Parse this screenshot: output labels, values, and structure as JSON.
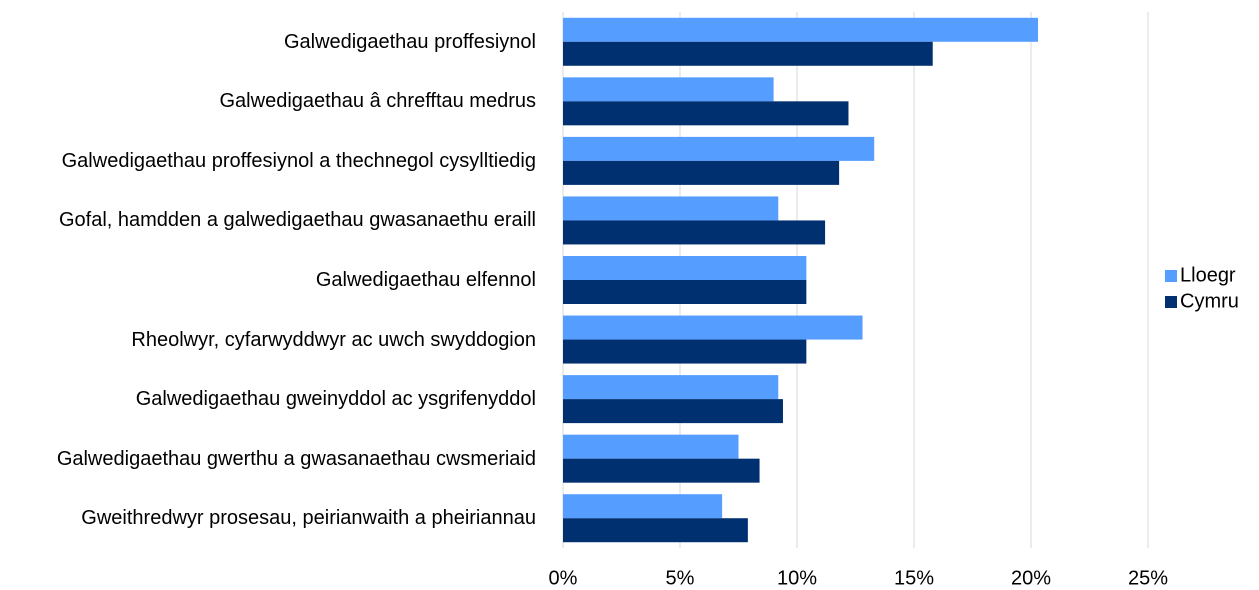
{
  "chart_data": {
    "type": "bar",
    "orientation": "horizontal",
    "categories": [
      "Galwedigaethau proffesiynol",
      "Galwedigaethau â chrefftau medrus",
      "Galwedigaethau proffesiynol a thechnegol cysylltiedig",
      "Gofal, hamdden a galwedigaethau gwasanaethu eraill",
      "Galwedigaethau elfennol",
      "Rheolwyr, cyfarwyddwyr ac uwch swyddogion",
      "Galwedigaethau gweinyddol ac ysgrifenyddol",
      "Galwedigaethau gwerthu a gwasanaethau cwsmeriaid",
      "Gweithredwyr prosesau, peirianwaith a pheiriannau"
    ],
    "series": [
      {
        "name": "Lloegr",
        "color": "#559dff",
        "values": [
          20.3,
          9.0,
          13.3,
          9.2,
          10.4,
          12.8,
          9.2,
          7.5,
          6.8
        ]
      },
      {
        "name": "Cymru",
        "color": "#003070",
        "values": [
          15.8,
          12.2,
          11.8,
          11.2,
          10.4,
          10.4,
          9.4,
          8.4,
          7.9
        ]
      }
    ],
    "xlim": [
      0,
      25
    ],
    "xticks": [
      {
        "value": 0,
        "label": "0%"
      },
      {
        "value": 5,
        "label": "5%"
      },
      {
        "value": 10,
        "label": "10%"
      },
      {
        "value": 15,
        "label": "15%"
      },
      {
        "value": 20,
        "label": "20%"
      },
      {
        "value": 25,
        "label": "25%"
      }
    ],
    "grid": true,
    "legend": "right"
  }
}
